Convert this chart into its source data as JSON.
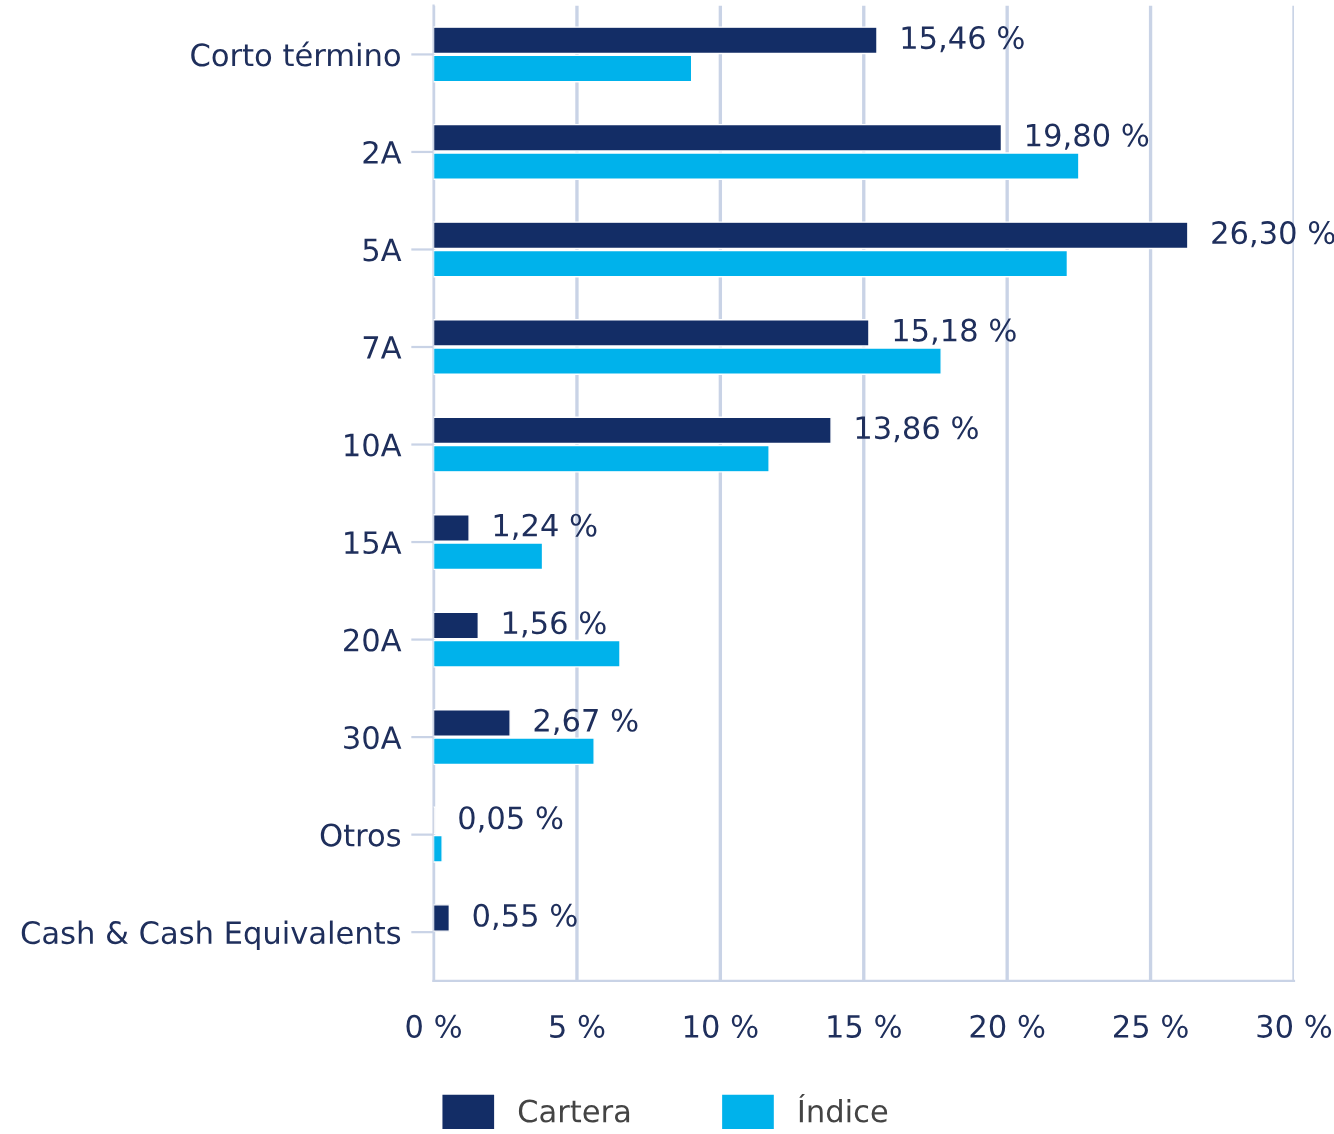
{
  "chart_data": {
    "type": "bar",
    "orientation": "horizontal",
    "categories": [
      "Corto término",
      "2A",
      "5A",
      "7A",
      "10A",
      "15A",
      "20A",
      "30A",
      "Otros",
      "Cash & Cash Equivalents"
    ],
    "series": [
      {
        "name": "Cartera",
        "color": "#132d66",
        "values": [
          15.46,
          19.8,
          26.3,
          15.18,
          13.86,
          1.24,
          1.56,
          2.67,
          0.05,
          0.55
        ],
        "value_labels": [
          "15,46 %",
          "19,80 %",
          "26,30 %",
          "15,18 %",
          "13,86 %",
          "1,24 %",
          "1,56 %",
          "2,67 %",
          "0,05 %",
          "0,55 %"
        ]
      },
      {
        "name": "Índice",
        "color": "#00b2eb",
        "values": [
          9.0,
          22.5,
          22.1,
          17.7,
          11.7,
          3.8,
          6.5,
          5.6,
          0.3,
          null
        ]
      }
    ],
    "xlim": [
      0,
      30
    ],
    "xticks": [
      {
        "value": 0,
        "label": "0 %"
      },
      {
        "value": 5,
        "label": "5 %"
      },
      {
        "value": 10,
        "label": "10 %"
      },
      {
        "value": 15,
        "label": "15 %"
      },
      {
        "value": 20,
        "label": "20 %"
      },
      {
        "value": 25,
        "label": "25 %"
      },
      {
        "value": 30,
        "label": "30 %"
      }
    ],
    "grid": "x",
    "legend": "bottom"
  }
}
